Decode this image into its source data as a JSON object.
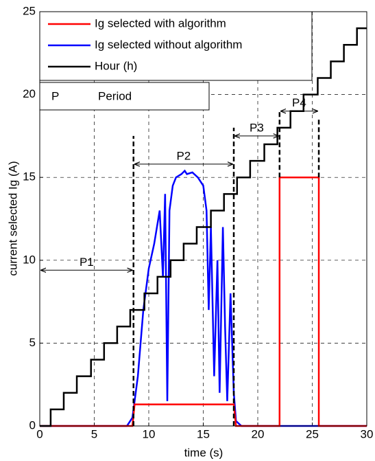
{
  "chart_data": {
    "type": "line",
    "xlabel": "time (s)",
    "ylabel": "current selected Ig (A)",
    "xlim": [
      0,
      30
    ],
    "ylim": [
      0,
      25
    ],
    "xticks": [
      0,
      5,
      10,
      15,
      20,
      25,
      30
    ],
    "yticks": [
      0,
      5,
      10,
      15,
      20,
      25
    ],
    "grid": true,
    "legend": "upper left",
    "series": [
      {
        "name": "Ig selected with algorithm",
        "color": "#ff0000",
        "x": [
          0,
          8.5,
          8.7,
          17.8,
          18.0,
          22.0,
          22.0,
          25.6,
          25.6,
          30
        ],
        "values": [
          0,
          0,
          1.3,
          1.3,
          0,
          0,
          15,
          15,
          0,
          0
        ]
      },
      {
        "name": "Ig selected without algorithm",
        "color": "#0000ff",
        "x": [
          0,
          8.0,
          8.5,
          9.0,
          9.5,
          10.0,
          10.5,
          11.0,
          11.3,
          11.5,
          11.7,
          11.9,
          12.2,
          12.5,
          13.0,
          13.3,
          13.5,
          14.0,
          14.5,
          15.0,
          15.3,
          15.5,
          15.7,
          16.0,
          16.3,
          16.5,
          16.8,
          17.0,
          17.2,
          17.5,
          17.8,
          18.0,
          18.5,
          30
        ],
        "values": [
          0,
          0,
          0.5,
          3,
          7,
          9.5,
          11,
          13,
          9,
          14,
          1.5,
          13,
          14.5,
          15,
          15.2,
          15.4,
          15.2,
          15.3,
          15.0,
          14.5,
          13,
          7,
          12,
          3,
          10,
          2,
          12,
          6,
          1.5,
          8,
          2,
          0.3,
          0,
          0
        ]
      },
      {
        "name": "Hour (h)",
        "color": "#000000",
        "x": [
          0,
          1.0,
          1.0,
          2.2,
          2.2,
          3.4,
          3.4,
          4.7,
          4.7,
          5.9,
          5.9,
          7.1,
          7.1,
          8.3,
          8.3,
          9.6,
          9.6,
          10.8,
          10.8,
          12.0,
          12.0,
          13.2,
          13.2,
          14.4,
          14.4,
          15.7,
          15.7,
          16.9,
          16.9,
          18.1,
          18.1,
          19.3,
          19.3,
          20.6,
          20.6,
          21.8,
          21.8,
          23.0,
          23.0,
          24.2,
          24.2,
          25.5,
          25.5,
          26.7,
          26.7,
          27.9,
          27.9,
          29.1,
          29.1,
          30
        ],
        "values": [
          0,
          0,
          1,
          1,
          2,
          2,
          3,
          3,
          4,
          4,
          5,
          5,
          6,
          6,
          7,
          7,
          8,
          8,
          9,
          9,
          10,
          10,
          11,
          11,
          12,
          12,
          13,
          13,
          14,
          14,
          15,
          15,
          16,
          16,
          17,
          17,
          18,
          18,
          19,
          19,
          20,
          20,
          21,
          21,
          22,
          22,
          23,
          23,
          24,
          24
        ]
      }
    ],
    "legend_note": {
      "symbol": "P",
      "text": "Period"
    },
    "periods": [
      {
        "label": "P1",
        "start": 0,
        "end": 8.6,
        "level": 9.4
      },
      {
        "label": "P2",
        "start": 8.6,
        "end": 17.8,
        "level": 15.8
      },
      {
        "label": "P3",
        "start": 17.8,
        "end": 22.0,
        "level": 17.5
      },
      {
        "label": "P4",
        "start": 22.0,
        "end": 25.6,
        "level": 19.0
      }
    ],
    "dividers": [
      {
        "x": 8.6,
        "from": 0,
        "to": 17.5
      },
      {
        "x": 17.8,
        "from": 0,
        "to": 18.0
      },
      {
        "x": 22.0,
        "from": 15,
        "to": 19.0
      },
      {
        "x": 25.6,
        "from": 15,
        "to": 18.5
      }
    ]
  }
}
